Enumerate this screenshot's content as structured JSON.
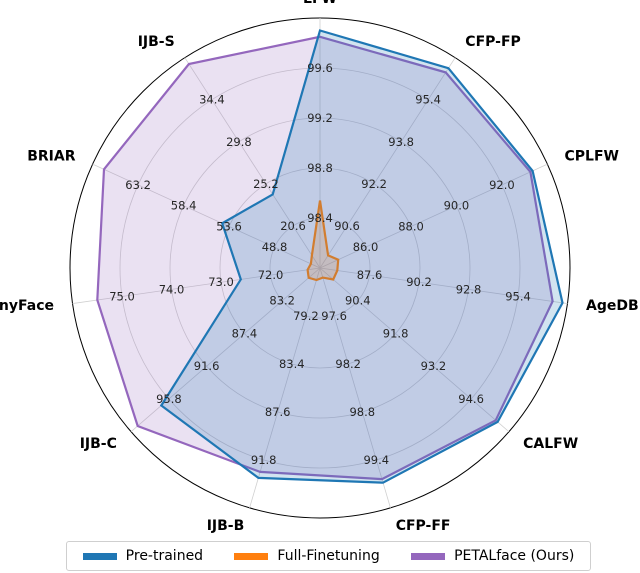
{
  "chart_data": {
    "type": "radar",
    "axes": [
      {
        "name": "LFW",
        "ticks": [
          "98.4",
          "98.8",
          "99.2",
          "99.6"
        ]
      },
      {
        "name": "CFP-FP",
        "ticks": [
          "90.6",
          "92.2",
          "93.8",
          "95.4"
        ]
      },
      {
        "name": "CPLFW",
        "ticks": [
          "86.0",
          "88.0",
          "90.0",
          "92.0"
        ]
      },
      {
        "name": "AgeDB",
        "ticks": [
          "87.6",
          "90.2",
          "92.8",
          "95.4"
        ]
      },
      {
        "name": "CALFW",
        "ticks": [
          "90.4",
          "91.8",
          "93.2",
          "94.6"
        ]
      },
      {
        "name": "CFP-FF",
        "ticks": [
          "97.6",
          "98.2",
          "98.8",
          "99.4"
        ]
      },
      {
        "name": "IJB-B",
        "ticks": [
          "79.2",
          "83.4",
          "87.6",
          "91.8"
        ]
      },
      {
        "name": "IJB-C",
        "ticks": [
          "83.2",
          "87.4",
          "91.6",
          "95.8"
        ]
      },
      {
        "name": "TinyFace",
        "ticks": [
          "72.0",
          "73.0",
          "74.0",
          "75.0"
        ]
      },
      {
        "name": "BRIAR",
        "ticks": [
          "48.8",
          "53.6",
          "58.4",
          "63.2"
        ]
      },
      {
        "name": "IJB-S",
        "ticks": [
          "20.6",
          "25.2",
          "29.8",
          "34.4"
        ]
      }
    ],
    "rlim": [
      0,
      1
    ],
    "grid": true,
    "series": [
      {
        "name": "Pre-trained",
        "color": "#1f77b4",
        "fill_opacity": 0.2,
        "values": [
          0.95,
          0.95,
          0.935,
          0.98,
          0.94,
          0.895,
          0.875,
          0.84,
          0.32,
          0.43,
          0.35
        ]
      },
      {
        "name": "Full-Finetuning",
        "color": "#ff7f0e",
        "fill_opacity": 0.2,
        "values": [
          0.27,
          0.06,
          0.08,
          0.07,
          0.07,
          0.04,
          0.05,
          0.06,
          0.05,
          0.04,
          0.06
        ]
      },
      {
        "name": "PETALface (Ours)",
        "color": "#9467bd",
        "fill_opacity": 0.2,
        "values": [
          0.925,
          0.93,
          0.925,
          0.94,
          0.93,
          0.88,
          0.85,
          0.965,
          0.9,
          0.95,
          0.97
        ]
      }
    ],
    "legend_position": "bottom"
  }
}
